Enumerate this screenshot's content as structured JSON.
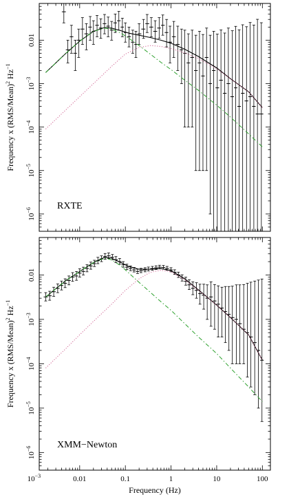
{
  "chart_data": [
    {
      "type": "line",
      "label": "RXTE",
      "ylabel": "Frequency x (RMS/Mean)",
      "ylabel_sup": "2",
      "ylabel_unit": " Hz",
      "ylabel_unit_sup": "−1",
      "xscale": "log",
      "yscale": "log",
      "xlim": [
        0.0013,
        150
      ],
      "ylim": [
        4e-07,
        0.07
      ],
      "y_ticks": [
        {
          "value": 0.01,
          "base": "0.01",
          "exp": ""
        },
        {
          "value": 0.001,
          "base": "10",
          "exp": "−3"
        },
        {
          "value": 0.0001,
          "base": "10",
          "exp": "−4"
        },
        {
          "value": 1e-05,
          "base": "10",
          "exp": "−5"
        },
        {
          "value": 1e-06,
          "base": "10",
          "exp": "−6"
        }
      ],
      "series": [
        {
          "style": "step-errorbars",
          "color": "#000000",
          "x": [
            0.0045,
            0.0055,
            0.0066,
            0.008,
            0.0095,
            0.0115,
            0.014,
            0.017,
            0.02,
            0.024,
            0.029,
            0.035,
            0.042,
            0.05,
            0.06,
            0.072,
            0.086,
            0.1,
            0.12,
            0.145,
            0.17,
            0.2,
            0.25,
            0.3,
            0.37,
            0.45,
            0.55,
            0.66,
            0.8,
            0.95,
            1.15,
            1.4,
            1.7,
            2.0,
            2.4,
            2.9,
            3.5,
            4.2,
            5.0,
            6.0,
            7.2,
            8.6,
            10.3,
            12.4,
            15,
            18,
            22,
            26,
            31,
            37,
            45,
            54,
            65,
            78,
            95
          ],
          "y": [
            0.045,
            0.006,
            0.012,
            0.005,
            0.01,
            0.018,
            0.014,
            0.02,
            0.016,
            0.022,
            0.019,
            0.024,
            0.021,
            0.017,
            0.025,
            0.028,
            0.02,
            0.015,
            0.012,
            0.009,
            0.008,
            0.014,
            0.018,
            0.024,
            0.02,
            0.016,
            0.019,
            0.022,
            0.015,
            0.009,
            0.012,
            0.008,
            0.006,
            0.005,
            0.003,
            0.004,
            0.002,
            0.003,
            0.0015,
            0.004,
            0.001,
            0.002,
            0.0008,
            0.0012,
            0.0006,
            0.001,
            0.0005,
            0.0008,
            0.0003,
            0.0006,
            0.0004,
            0.0005,
            0.0003,
            0.0002,
            0.0002
          ],
          "yerr_lo": [
            0.02,
            0.003,
            0.007,
            0.003,
            0.006,
            0.01,
            0.008,
            0.01,
            0.008,
            0.01,
            0.008,
            0.01,
            0.009,
            0.007,
            0.01,
            0.011,
            0.008,
            0.006,
            0.005,
            0.004,
            0.004,
            0.006,
            0.007,
            0.009,
            0.008,
            0.007,
            0.008,
            0.009,
            0.008,
            0.006,
            0.008,
            0.006,
            0.005,
            0.0049,
            0.0029,
            0.0039,
            0.00199,
            0.00299,
            0.00149,
            0.00399,
            0.000999,
            0.002,
            0.0008,
            0.0012,
            0.0006,
            0.001,
            0.0005,
            0.0008,
            0.0003,
            0.0006,
            0.0004,
            0.0005,
            0.0003,
            0.0002,
            0.0002
          ],
          "yerr_hi": [
            0.03,
            0.004,
            0.01,
            0.005,
            0.008,
            0.015,
            0.01,
            0.015,
            0.012,
            0.015,
            0.012,
            0.015,
            0.013,
            0.01,
            0.015,
            0.018,
            0.012,
            0.01,
            0.008,
            0.008,
            0.008,
            0.01,
            0.012,
            0.015,
            0.013,
            0.012,
            0.014,
            0.016,
            0.015,
            0.012,
            0.015,
            0.013,
            0.012,
            0.012,
            0.011,
            0.013,
            0.011,
            0.013,
            0.012,
            0.015,
            0.012,
            0.014,
            0.013,
            0.016,
            0.014,
            0.018,
            0.016,
            0.02,
            0.017,
            0.022,
            0.02,
            0.025,
            0.022,
            0.03,
            0.025
          ]
        },
        {
          "style": "solid",
          "color": "#000000",
          "x": [
            0.0018,
            0.005,
            0.01,
            0.02,
            0.035,
            0.05,
            0.08,
            0.12,
            0.2,
            0.35,
            0.6,
            1,
            2,
            4,
            10,
            20,
            50,
            100
          ],
          "y": [
            0.0018,
            0.005,
            0.0095,
            0.016,
            0.0195,
            0.019,
            0.0165,
            0.0145,
            0.013,
            0.0115,
            0.01,
            0.0085,
            0.0062,
            0.0042,
            0.0023,
            0.0013,
            0.00065,
            0.00028
          ]
        },
        {
          "style": "dash-dot",
          "color": "#2ca02c",
          "x": [
            0.0018,
            0.005,
            0.01,
            0.02,
            0.035,
            0.05,
            0.08,
            0.12,
            0.2,
            0.35,
            0.6,
            1,
            2,
            4,
            10,
            20,
            50,
            100
          ],
          "y": [
            0.0018,
            0.005,
            0.0095,
            0.016,
            0.019,
            0.018,
            0.0145,
            0.011,
            0.0075,
            0.0048,
            0.0031,
            0.0021,
            0.0012,
            0.0007,
            0.00032,
            0.00017,
            7e-05,
            3.5e-05
          ]
        },
        {
          "style": "dotted",
          "color": "#d06090",
          "x": [
            0.0018,
            0.005,
            0.01,
            0.02,
            0.05,
            0.1,
            0.2,
            0.35,
            0.6,
            1,
            2,
            4,
            10,
            20,
            50,
            100
          ],
          "y": [
            9e-05,
            0.00025,
            0.0005,
            0.001,
            0.0025,
            0.0048,
            0.0068,
            0.0075,
            0.0072,
            0.0064,
            0.0051,
            0.0038,
            0.0022,
            0.0013,
            0.00065,
            0.00028
          ]
        }
      ]
    },
    {
      "type": "line",
      "label": "XMM−Newton",
      "ylabel": "Frequency x (RMS/Mean)",
      "ylabel_sup": "2",
      "ylabel_unit": " Hz",
      "ylabel_unit_sup": "−1",
      "xlabel": "Frequency (Hz)",
      "xscale": "log",
      "yscale": "log",
      "xlim": [
        0.0013,
        150
      ],
      "ylim": [
        4e-07,
        0.07
      ],
      "x_ticks": [
        {
          "value": 0.001,
          "base": "10",
          "exp": "−3"
        },
        {
          "value": 0.01,
          "base": "0.01",
          "exp": ""
        },
        {
          "value": 0.1,
          "base": "0.1",
          "exp": ""
        },
        {
          "value": 1,
          "base": "1",
          "exp": ""
        },
        {
          "value": 10,
          "base": "10",
          "exp": ""
        },
        {
          "value": 100,
          "base": "100",
          "exp": ""
        }
      ],
      "y_ticks": [
        {
          "value": 0.01,
          "base": "0.01",
          "exp": ""
        },
        {
          "value": 0.001,
          "base": "10",
          "exp": "−3"
        },
        {
          "value": 0.0001,
          "base": "10",
          "exp": "−4"
        },
        {
          "value": 1e-05,
          "base": "10",
          "exp": "−5"
        },
        {
          "value": 1e-06,
          "base": "10",
          "exp": "−6"
        }
      ],
      "series": [
        {
          "style": "step-errorbars",
          "color": "#000000",
          "x": [
            0.0018,
            0.0022,
            0.0027,
            0.0033,
            0.004,
            0.0048,
            0.0058,
            0.007,
            0.0085,
            0.01,
            0.012,
            0.0145,
            0.0175,
            0.021,
            0.025,
            0.03,
            0.036,
            0.043,
            0.052,
            0.062,
            0.075,
            0.09,
            0.108,
            0.13,
            0.155,
            0.185,
            0.22,
            0.27,
            0.32,
            0.39,
            0.47,
            0.56,
            0.68,
            0.82,
            1.0,
            1.2,
            1.45,
            1.75,
            2.1,
            2.5,
            3.0,
            3.6,
            4.3,
            5.2,
            6.2,
            7.5,
            9.0,
            10.8,
            13,
            15.5,
            18.5,
            22,
            27,
            32,
            39,
            47,
            56,
            68,
            82,
            98
          ],
          "y": [
            0.0032,
            0.0034,
            0.0042,
            0.005,
            0.0058,
            0.0065,
            0.0075,
            0.009,
            0.0095,
            0.011,
            0.012,
            0.014,
            0.016,
            0.018,
            0.021,
            0.023,
            0.026,
            0.027,
            0.025,
            0.022,
            0.02,
            0.017,
            0.015,
            0.014,
            0.013,
            0.012,
            0.0125,
            0.013,
            0.0135,
            0.014,
            0.0145,
            0.015,
            0.0148,
            0.014,
            0.013,
            0.0115,
            0.01,
            0.0085,
            0.0072,
            0.006,
            0.005,
            0.0045,
            0.0038,
            0.0035,
            0.003,
            0.0032,
            0.0026,
            0.0022,
            0.0018,
            0.0015,
            0.0013,
            0.0011,
            0.001,
            0.0008,
            0.0006,
            0.0005,
            0.0004,
            0.0003,
            0.0002,
            0.00012
          ],
          "yerr_lo": [
            0.0006,
            0.0007,
            0.0009,
            0.001,
            0.0012,
            0.0013,
            0.0015,
            0.0018,
            0.0019,
            0.002,
            0.002,
            0.0022,
            0.0025,
            0.0025,
            0.003,
            0.003,
            0.0035,
            0.0035,
            0.003,
            0.003,
            0.0025,
            0.002,
            0.0018,
            0.0015,
            0.0013,
            0.0012,
            0.0012,
            0.0012,
            0.0012,
            0.0012,
            0.0012,
            0.0012,
            0.0012,
            0.0012,
            0.0012,
            0.0012,
            0.0012,
            0.0012,
            0.0013,
            0.0013,
            0.0014,
            0.0015,
            0.0016,
            0.0018,
            0.002,
            0.0025,
            0.002,
            0.0018,
            0.0014,
            0.0012,
            0.0011,
            0.001,
            0.0009,
            0.0007,
            0.0005,
            0.00045,
            0.00037,
            0.00028,
            0.00019,
            0.000115
          ],
          "yerr_hi": [
            0.0008,
            0.0009,
            0.0011,
            0.0013,
            0.0015,
            0.0017,
            0.002,
            0.0023,
            0.0025,
            0.0028,
            0.003,
            0.003,
            0.0035,
            0.0035,
            0.004,
            0.004,
            0.0045,
            0.0045,
            0.004,
            0.004,
            0.0035,
            0.003,
            0.0025,
            0.002,
            0.0018,
            0.0016,
            0.0016,
            0.0016,
            0.0016,
            0.0016,
            0.0016,
            0.0016,
            0.0016,
            0.0016,
            0.0016,
            0.0016,
            0.0016,
            0.0016,
            0.0017,
            0.0018,
            0.002,
            0.0022,
            0.0024,
            0.0027,
            0.003,
            0.0038,
            0.0035,
            0.0035,
            0.0035,
            0.004,
            0.0042,
            0.0045,
            0.005,
            0.0052,
            0.0055,
            0.006,
            0.0065,
            0.007,
            0.0075,
            0.008
          ]
        },
        {
          "style": "solid",
          "color": "#000000",
          "x": [
            0.0018,
            0.005,
            0.01,
            0.02,
            0.035,
            0.05,
            0.08,
            0.12,
            0.2,
            0.35,
            0.6,
            1,
            2,
            4,
            10,
            20,
            50,
            100
          ],
          "y": [
            0.0032,
            0.0075,
            0.012,
            0.019,
            0.025,
            0.024,
            0.019,
            0.0155,
            0.0135,
            0.0135,
            0.014,
            0.0125,
            0.0082,
            0.0046,
            0.0021,
            0.0011,
            0.00045,
            0.00012
          ]
        },
        {
          "style": "dash-dot",
          "color": "#2ca02c",
          "x": [
            0.0018,
            0.005,
            0.01,
            0.02,
            0.035,
            0.05,
            0.08,
            0.12,
            0.2,
            0.35,
            0.6,
            1,
            2,
            4,
            10,
            20,
            50,
            100
          ],
          "y": [
            0.0032,
            0.0075,
            0.012,
            0.019,
            0.024,
            0.022,
            0.016,
            0.011,
            0.0068,
            0.0041,
            0.0025,
            0.0016,
            0.0008,
            0.0004,
            0.00017,
            8e-05,
            3e-05,
            1.4e-05
          ]
        },
        {
          "style": "dotted",
          "color": "#d06090",
          "x": [
            0.0018,
            0.005,
            0.01,
            0.02,
            0.05,
            0.1,
            0.2,
            0.35,
            0.6,
            1,
            2,
            4,
            10,
            20,
            50,
            100
          ],
          "y": [
            8e-05,
            0.00022,
            0.00045,
            0.0009,
            0.0022,
            0.0045,
            0.0082,
            0.0115,
            0.0128,
            0.0118,
            0.0078,
            0.0045,
            0.0021,
            0.0011,
            0.00045,
            0.00012
          ]
        }
      ]
    }
  ]
}
